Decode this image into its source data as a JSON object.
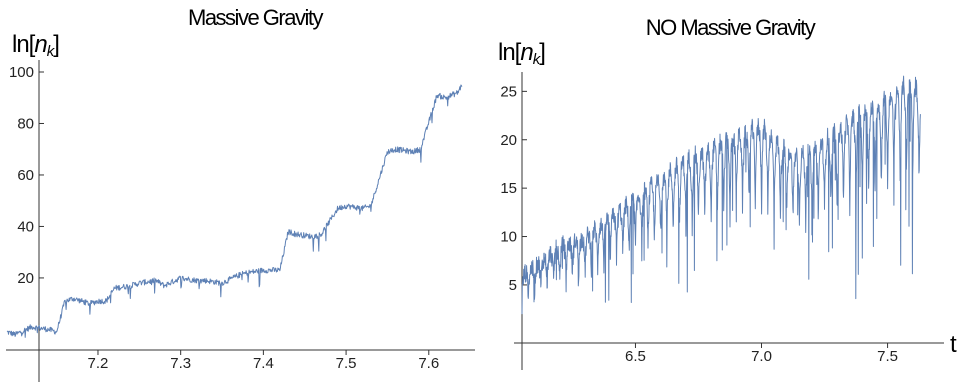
{
  "chart_data": [
    {
      "type": "line",
      "title": "Massive Gravity",
      "ylabel_main": "ln[",
      "ylabel_var": "n",
      "ylabel_sub": "k",
      "ylabel_close": "]",
      "xlabel": "",
      "xlim": [
        7.09,
        7.645
      ],
      "ylim": [
        -8,
        100
      ],
      "xticks": [
        "7.2",
        "7.3",
        "7.4",
        "7.5",
        "7.6"
      ],
      "xtick_values": [
        7.2,
        7.3,
        7.4,
        7.5,
        7.6
      ],
      "yticks": [
        "20",
        "40",
        "60",
        "80",
        "100"
      ],
      "ytick_values": [
        20,
        40,
        60,
        80,
        100
      ],
      "color": "#5e81b5",
      "series": [
        {
          "x": [
            7.09,
            7.1,
            7.12,
            7.14,
            7.15,
            7.16,
            7.17,
            7.19,
            7.2,
            7.21,
            7.22,
            7.24,
            7.25,
            7.27,
            7.28,
            7.3,
            7.32,
            7.33,
            7.35,
            7.37,
            7.38,
            7.4,
            7.42,
            7.43,
            7.44,
            7.46,
            7.47,
            7.49,
            7.5,
            7.52,
            7.53,
            7.55,
            7.56,
            7.58,
            7.59,
            7.61,
            7.62,
            7.635,
            7.64
          ],
          "y": [
            -1,
            -2,
            1,
            0,
            -1,
            11,
            12,
            10,
            11,
            11,
            16,
            17,
            18,
            19,
            17,
            20,
            19,
            19,
            18,
            21,
            22,
            23,
            23,
            38,
            37,
            36,
            37,
            47,
            48,
            47,
            48,
            69,
            70,
            69,
            70,
            91,
            90,
            92,
            95
          ]
        }
      ]
    },
    {
      "type": "line",
      "title": "NO Massive Gravity",
      "ylabel_main": "ln[",
      "ylabel_var": "n",
      "ylabel_sub": "k",
      "ylabel_close": "]",
      "xlabel": "t",
      "xlim": [
        6.05,
        7.7
      ],
      "ylim": [
        -1,
        27
      ],
      "xticks": [
        "6.5",
        "7.0",
        "7.5"
      ],
      "xtick_values": [
        6.5,
        7.0,
        7.5
      ],
      "yticks": [
        "5",
        "10",
        "15",
        "20",
        "25"
      ],
      "ytick_values": [
        5,
        10,
        15,
        20,
        25
      ],
      "color": "#5e81b5",
      "series": [
        {
          "x": [
            6.05,
            6.1,
            6.15,
            6.2,
            6.25,
            6.3,
            6.35,
            6.4,
            6.45,
            6.5,
            6.55,
            6.6,
            6.65,
            6.7,
            6.75,
            6.8,
            6.85,
            6.9,
            6.95,
            7.0,
            7.05,
            7.1,
            7.15,
            7.2,
            7.25,
            7.3,
            7.35,
            7.4,
            7.45,
            7.5,
            7.55,
            7.6,
            7.63
          ],
          "y": [
            6,
            7,
            8,
            9,
            9.5,
            10,
            11,
            12,
            13,
            14,
            15,
            16,
            17,
            18,
            18.5,
            19,
            20,
            20.5,
            21,
            21.5,
            20,
            19,
            18.5,
            19,
            20,
            21,
            22,
            23,
            23.5,
            24.5,
            25.5,
            26,
            25
          ]
        }
      ]
    }
  ]
}
